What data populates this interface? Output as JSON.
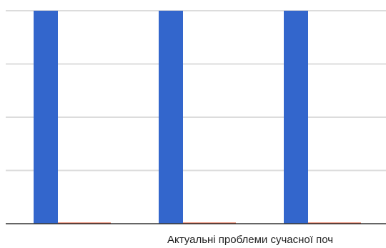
{
  "chart_data": {
    "type": "bar",
    "categories": [
      "",
      "",
      ""
    ],
    "category_label_visible": "Актуальні проблеми сучасної поч",
    "series": [
      {
        "values": [
          4,
          4,
          4
        ],
        "color": "#3366cc"
      },
      {
        "values": [
          0,
          0,
          0
        ],
        "color": "#dc3912"
      }
    ],
    "ylim": [
      0,
      4
    ],
    "grid": true,
    "legend": "none",
    "title": "",
    "xlabel": "",
    "ylabel": ""
  }
}
